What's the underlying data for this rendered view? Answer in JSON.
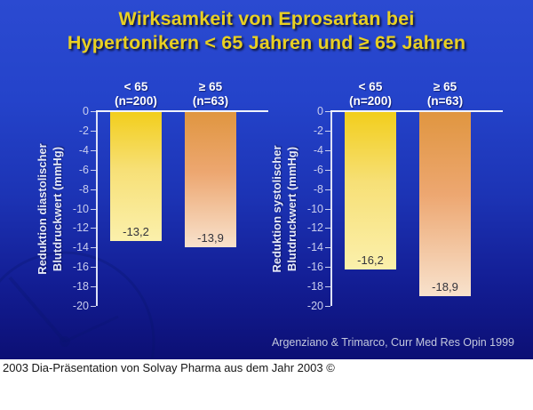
{
  "slide": {
    "title_line1": "Wirksamkeit von Eprosartan bei",
    "title_line2": "Hypertonikern < 65 Jahren und ≥ 65 Jahren",
    "citation": "Argenziano & Trimarco, Curr Med Res Opin 1999",
    "footer": "2003 Dia-Präsentation von Solvay Pharma aus dem Jahr 2003 ©"
  },
  "colors": {
    "background_top": "#2b4ad1",
    "background_bottom": "#0c0f74",
    "title_text": "#e9d022",
    "column_header_text": "#ffffff",
    "axis_text": "#c9cdee",
    "axis_line": "#dde1f5",
    "zero_line": "#f0f3fc",
    "bar_value_text": "#33333b",
    "citation_text": "#c3c8dd",
    "footer_background": "#ffffff",
    "footer_text": "#161616",
    "bar_yellow_top": "#f2ce1c",
    "bar_yellow_bottom": "#fbf0ac",
    "bar_orange_top": "#e09640",
    "bar_orange_bottom": "#f8e2cd"
  },
  "chart_data": [
    {
      "type": "bar",
      "title": "",
      "ylabel": "Reduktion diastolischer Blutdruckwert (mmHg)",
      "ylabel_lines": [
        "Reduktion diastolischer",
        "Blutdruckwert (mmHg)"
      ],
      "categories": [
        "< 65 (n=200)",
        "≥ 65 (n=63)"
      ],
      "column_headers": [
        [
          "< 65",
          "(n=200)"
        ],
        [
          "≥ 65",
          "(n=63)"
        ]
      ],
      "values": [
        -13.2,
        -13.9
      ],
      "value_labels": [
        "-13,2",
        "-13,9"
      ],
      "ylim": [
        -20,
        0
      ],
      "ytick_step": 2,
      "grid": false,
      "legend": "none",
      "bar_gradients": [
        [
          "#f2ce1c",
          "#f7e077",
          "#fbf0ac"
        ],
        [
          "#e09640",
          "#eda771",
          "#f8e2cd"
        ]
      ]
    },
    {
      "type": "bar",
      "title": "",
      "ylabel": "Reduktion systolischer Blutdruckwert (mmHg)",
      "ylabel_lines": [
        "Reduktion systolischer",
        "Blutdruckwert (mmHg)"
      ],
      "categories": [
        "< 65 (n=200)",
        "≥ 65 (n=63)"
      ],
      "column_headers": [
        [
          "< 65",
          "(n=200)"
        ],
        [
          "≥ 65",
          "(n=63)"
        ]
      ],
      "values": [
        -16.2,
        -18.9
      ],
      "value_labels": [
        "-16,2",
        "-18,9"
      ],
      "ylim": [
        -20,
        0
      ],
      "ytick_step": 2,
      "grid": false,
      "legend": "none",
      "bar_gradients": [
        [
          "#f2ce1c",
          "#f7e077",
          "#fbf0ac"
        ],
        [
          "#e09640",
          "#eda771",
          "#f8e2cd"
        ]
      ]
    }
  ]
}
